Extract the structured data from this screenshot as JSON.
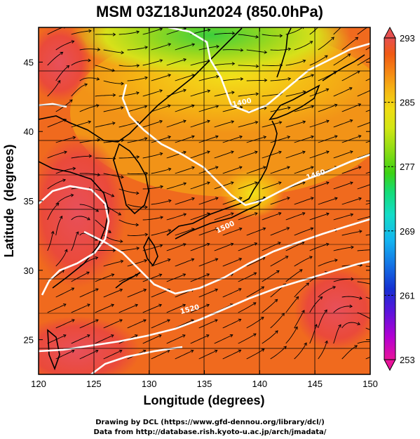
{
  "chart_data": {
    "type": "heatmap",
    "title": "MSM 03Z18Jun2024 (850.0hPa)",
    "xlabel": "Longitude (degrees)",
    "ylabel": "Latitude  (degrees)",
    "xlim": [
      120,
      150
    ],
    "ylim": [
      22.5,
      47.5
    ],
    "x_ticks": [
      120,
      125,
      130,
      135,
      140,
      145,
      150
    ],
    "y_ticks": [
      25,
      30,
      35,
      40,
      45
    ],
    "grid": true,
    "colorbar": {
      "min": 253,
      "max": 293,
      "ticks": [
        293,
        285,
        277,
        269,
        261,
        253
      ],
      "colors": [
        "#e8149a",
        "#b400d2",
        "#5a14dc",
        "#1430d2",
        "#1478e6",
        "#14b4f0",
        "#14dcc8",
        "#14dc78",
        "#3cd214",
        "#8cdc14",
        "#d2e614",
        "#f0dc14",
        "#f5b414",
        "#f58214",
        "#f05a14",
        "#e63c1e",
        "#e65050"
      ]
    },
    "contours": [
      {
        "label": "1400",
        "level": 1400
      },
      {
        "label": "1460",
        "level": 1460
      },
      {
        "label": "1500",
        "level": 1500
      },
      {
        "label": "1520",
        "level": 1520
      }
    ]
  },
  "footer": {
    "line1": "Drawing by DCL (https://www.gfd-dennou.org/library/dcl/)",
    "line2": "Data from http://database.rish.kyoto-u.ac.jp/arch/jmadata/"
  }
}
